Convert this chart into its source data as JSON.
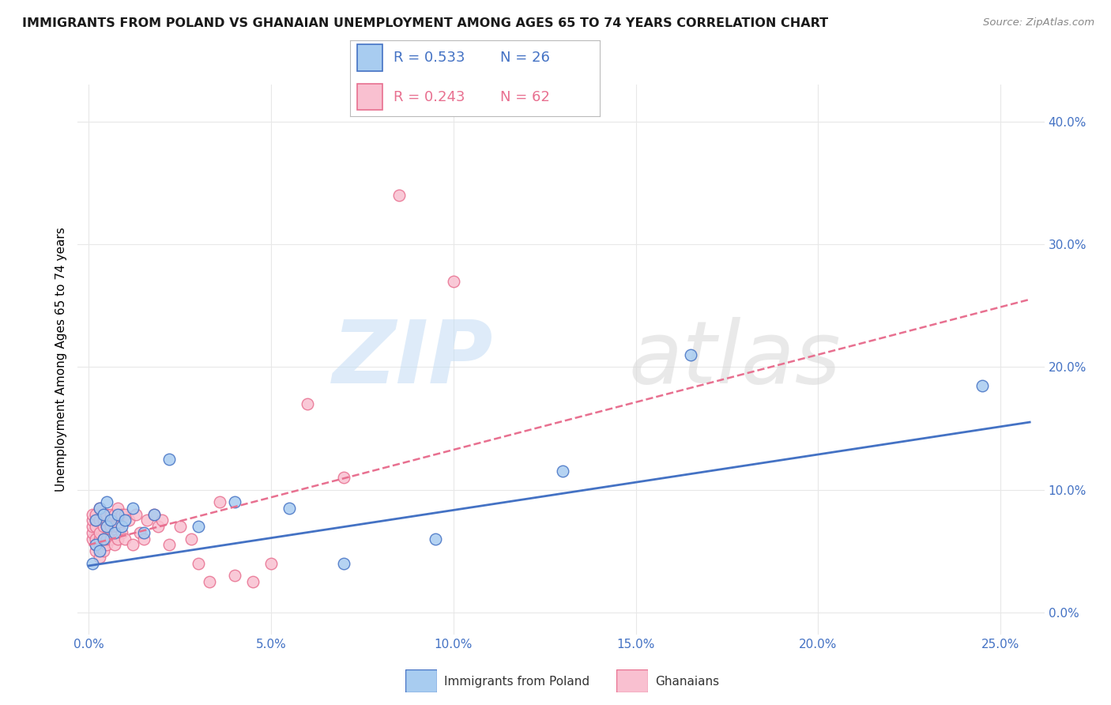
{
  "title": "IMMIGRANTS FROM POLAND VS GHANAIAN UNEMPLOYMENT AMONG AGES 65 TO 74 YEARS CORRELATION CHART",
  "source": "Source: ZipAtlas.com",
  "xlabel_ticks": [
    "0.0%",
    "5.0%",
    "10.0%",
    "15.0%",
    "20.0%",
    "25.0%"
  ],
  "xlabel_vals": [
    0.0,
    0.05,
    0.1,
    0.15,
    0.2,
    0.25
  ],
  "ylabel_ticks": [
    "0.0%",
    "10.0%",
    "20.0%",
    "30.0%",
    "40.0%"
  ],
  "ylabel_vals": [
    0.0,
    0.1,
    0.2,
    0.3,
    0.4
  ],
  "ylabel_label": "Unemployment Among Ages 65 to 74 years",
  "xlim": [
    -0.003,
    0.262
  ],
  "ylim": [
    -0.018,
    0.43
  ],
  "legend_poland_R": "R = 0.533",
  "legend_poland_N": "N = 26",
  "legend_ghana_R": "R = 0.243",
  "legend_ghana_N": "N = 62",
  "color_poland_fill": "#A8CCF0",
  "color_poland_edge": "#4472C4",
  "color_ghana_fill": "#F9C0D0",
  "color_ghana_edge": "#E87090",
  "color_poland_line": "#4472C4",
  "color_ghana_line": "#E87090",
  "color_title": "#1a1a1a",
  "color_source": "#888888",
  "color_ytick": "#4472C4",
  "color_xtick": "#4472C4",
  "color_ylabel": "#000000",
  "grid_color": "#E8E8E8",
  "poland_x": [
    0.001,
    0.002,
    0.002,
    0.003,
    0.003,
    0.004,
    0.004,
    0.005,
    0.005,
    0.006,
    0.007,
    0.008,
    0.009,
    0.01,
    0.012,
    0.015,
    0.018,
    0.022,
    0.03,
    0.04,
    0.055,
    0.07,
    0.095,
    0.13,
    0.165,
    0.245
  ],
  "poland_y": [
    0.04,
    0.055,
    0.075,
    0.05,
    0.085,
    0.06,
    0.08,
    0.07,
    0.09,
    0.075,
    0.065,
    0.08,
    0.07,
    0.075,
    0.085,
    0.065,
    0.08,
    0.125,
    0.07,
    0.09,
    0.085,
    0.04,
    0.06,
    0.115,
    0.21,
    0.185
  ],
  "ghana_x": [
    0.001,
    0.001,
    0.001,
    0.001,
    0.001,
    0.002,
    0.002,
    0.002,
    0.002,
    0.002,
    0.002,
    0.003,
    0.003,
    0.003,
    0.003,
    0.003,
    0.003,
    0.004,
    0.004,
    0.004,
    0.004,
    0.004,
    0.005,
    0.005,
    0.005,
    0.005,
    0.005,
    0.006,
    0.006,
    0.006,
    0.007,
    0.007,
    0.007,
    0.008,
    0.008,
    0.008,
    0.009,
    0.009,
    0.01,
    0.01,
    0.011,
    0.012,
    0.013,
    0.014,
    0.015,
    0.016,
    0.018,
    0.019,
    0.02,
    0.022,
    0.025,
    0.028,
    0.03,
    0.033,
    0.036,
    0.04,
    0.045,
    0.05,
    0.06,
    0.07,
    0.085,
    0.1
  ],
  "ghana_y": [
    0.06,
    0.065,
    0.07,
    0.075,
    0.08,
    0.05,
    0.055,
    0.06,
    0.07,
    0.075,
    0.08,
    0.045,
    0.055,
    0.06,
    0.065,
    0.075,
    0.085,
    0.05,
    0.06,
    0.07,
    0.075,
    0.08,
    0.055,
    0.06,
    0.07,
    0.075,
    0.08,
    0.06,
    0.07,
    0.08,
    0.055,
    0.07,
    0.08,
    0.06,
    0.07,
    0.085,
    0.065,
    0.08,
    0.06,
    0.08,
    0.075,
    0.055,
    0.08,
    0.065,
    0.06,
    0.075,
    0.08,
    0.07,
    0.075,
    0.055,
    0.07,
    0.06,
    0.04,
    0.025,
    0.09,
    0.03,
    0.025,
    0.04,
    0.17,
    0.11,
    0.34,
    0.27
  ],
  "trend_poland_x0": 0.0,
  "trend_poland_y0": 0.038,
  "trend_poland_x1": 0.258,
  "trend_poland_y1": 0.155,
  "trend_ghana_x0": 0.0,
  "trend_ghana_y0": 0.055,
  "trend_ghana_x1": 0.258,
  "trend_ghana_y1": 0.255
}
